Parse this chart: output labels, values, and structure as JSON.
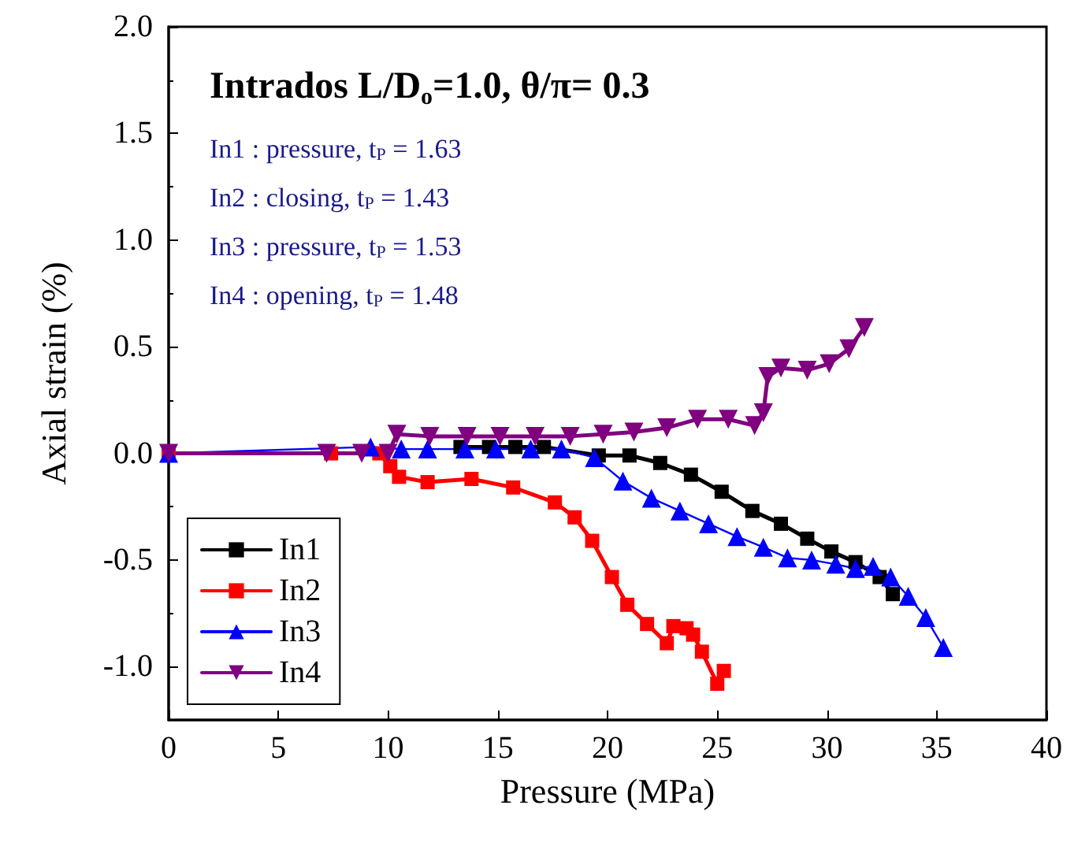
{
  "chart_data": {
    "type": "line",
    "title": "Intrados L/D$_{o}$=1.0, θ/π= 0.3",
    "annotations": [
      "In1 : pressure, t$_{P}$ = 1.63",
      "In2 : closing, t$_{P}$ = 1.43",
      "In3 : pressure, t$_{P}$ = 1.53",
      "In4 : opening, t$_{P}$ = 1.48"
    ],
    "xlabel": "Pressure (MPa)",
    "ylabel": "Axial strain (%)",
    "xlim": [
      0,
      40
    ],
    "xticks": [
      0,
      5,
      10,
      15,
      20,
      25,
      30,
      35,
      40
    ],
    "ylim": [
      -1.25,
      2.0
    ],
    "yticks": [
      {
        "value": -1,
        "label": "-1.0"
      },
      -0.5,
      {
        "value": 0,
        "label": "0.0"
      },
      0.5,
      {
        "value": 1,
        "label": "1.0"
      },
      1.5,
      {
        "value": 2,
        "label": "2.0"
      }
    ],
    "grid": false,
    "legend": "bottom left",
    "line_style": "solid",
    "series": [
      {
        "name": "In1",
        "color": "#000000",
        "marker": "square",
        "x": [
          13.3,
          14.6,
          15.8,
          17.1,
          19.6,
          21.0,
          22.4,
          23.8,
          25.2,
          26.6,
          27.9,
          29.1,
          30.2,
          31.3,
          32.4,
          33.0
        ],
        "values": [
          0.03,
          0.03,
          0.03,
          0.03,
          -0.01,
          -0.01,
          -0.045,
          -0.1,
          -0.18,
          -0.27,
          -0.33,
          -0.4,
          -0.46,
          -0.51,
          -0.58,
          -0.66
        ]
      },
      {
        "name": "In2",
        "color": "#ff0000",
        "marker": "square",
        "x": [
          0,
          7.4,
          9.6,
          10.1,
          10.5,
          11.8,
          13.8,
          15.7,
          17.6,
          18.5,
          19.3,
          20.2,
          20.9,
          21.8,
          22.7,
          23.0,
          23.6,
          23.9,
          24.3,
          25.0,
          25.3
        ],
        "values": [
          0,
          0,
          0,
          -0.06,
          -0.11,
          -0.135,
          -0.12,
          -0.16,
          -0.23,
          -0.3,
          -0.41,
          -0.58,
          -0.71,
          -0.8,
          -0.89,
          -0.81,
          -0.82,
          -0.85,
          -0.93,
          -1.08,
          -1.02
        ]
      },
      {
        "name": "In3",
        "color": "#0000ff",
        "marker": "triangle",
        "x": [
          0,
          9.2,
          10.6,
          11.8,
          13.5,
          14.9,
          16.5,
          17.9,
          19.4,
          20.7,
          22.0,
          23.3,
          24.6,
          25.9,
          27.1,
          28.2,
          29.3,
          30.4,
          31.3,
          32.1,
          32.9,
          33.7,
          34.5,
          35.3
        ],
        "values": [
          0,
          0.03,
          0.02,
          0.02,
          0.02,
          0.02,
          0.02,
          0.02,
          -0.02,
          -0.13,
          -0.21,
          -0.27,
          -0.33,
          -0.39,
          -0.44,
          -0.49,
          -0.5,
          -0.52,
          -0.54,
          -0.53,
          -0.58,
          -0.67,
          -0.77,
          -0.91
        ]
      },
      {
        "name": "In4",
        "color": "#800080",
        "marker": "triangle-down",
        "x": [
          0,
          7.2,
          8.8,
          10.0,
          10.4,
          11.9,
          13.6,
          15.1,
          16.7,
          18.3,
          19.8,
          21.2,
          22.7,
          24.1,
          25.5,
          26.7,
          27.1,
          27.3,
          27.9,
          29.1,
          30.1,
          31.0,
          31.7
        ],
        "values": [
          0,
          0,
          0,
          0,
          0.09,
          0.08,
          0.08,
          0.08,
          0.08,
          0.08,
          0.09,
          0.1,
          0.12,
          0.16,
          0.16,
          0.13,
          0.19,
          0.36,
          0.4,
          0.39,
          0.42,
          0.49,
          0.59
        ]
      }
    ]
  }
}
